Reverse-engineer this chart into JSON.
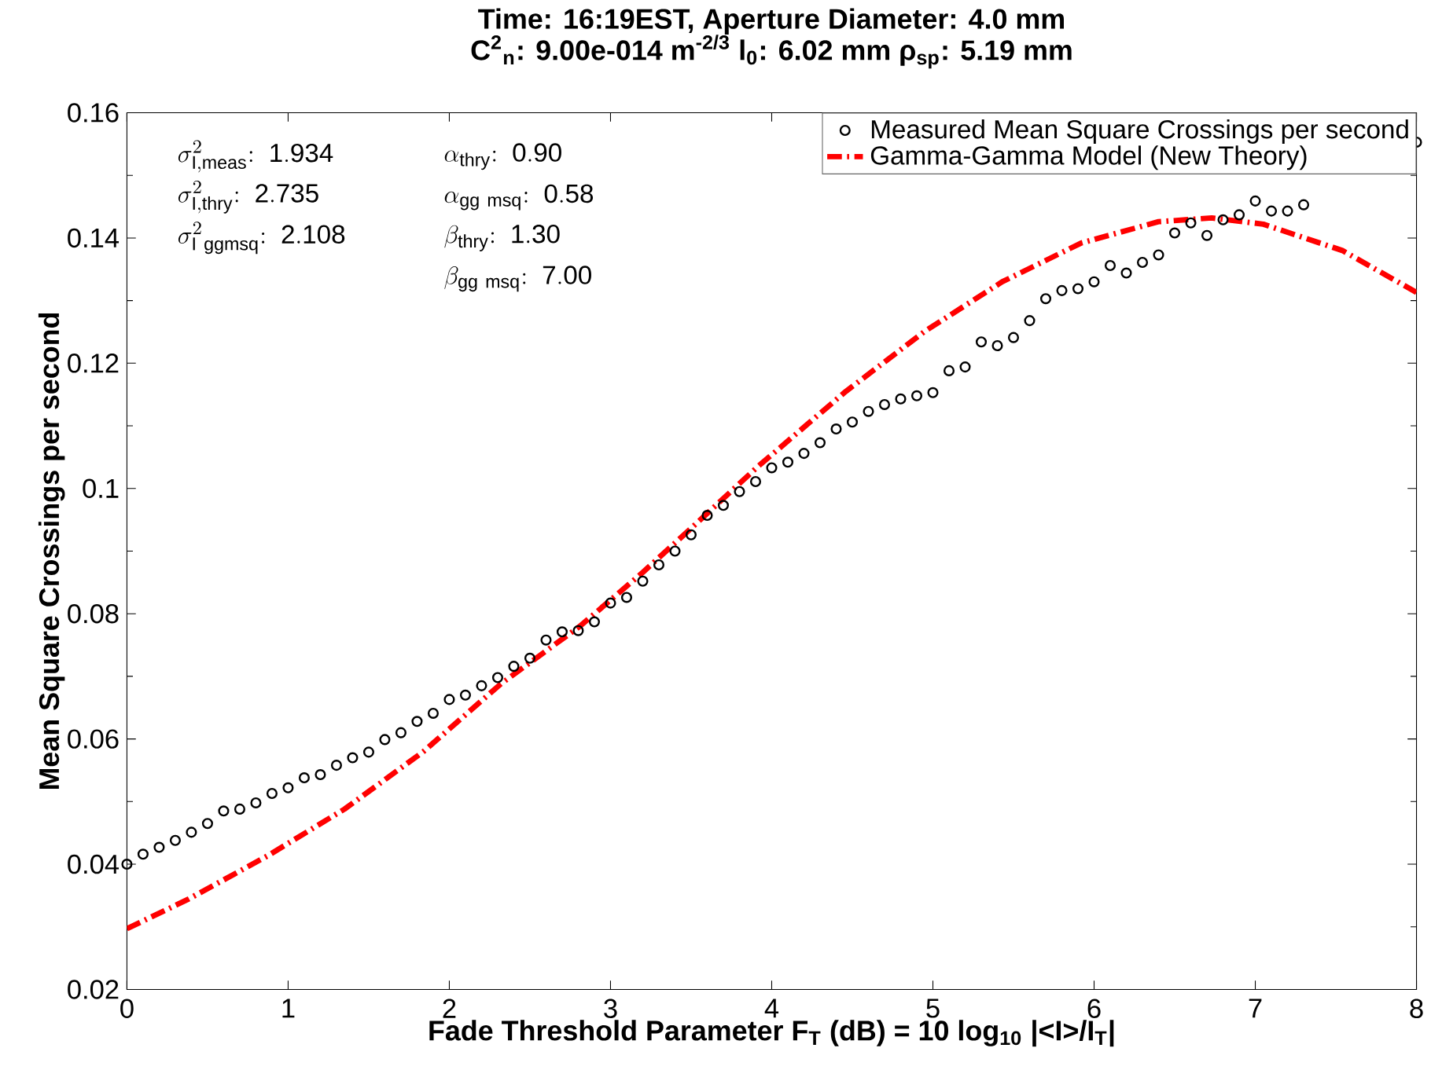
{
  "chart_data": {
    "type": "scatter",
    "title": "Time: 16:19EST, Aperture Diameter: 4.0 mm",
    "subtitle": "C$^{2}$$_{n}$: 9.00e-014 m$^{-2/3}$ l$_{0}$: 6.02 mm  ρ$_{sp}$: 5.19 mm",
    "xlabel": "Fade Threshold Parameter F$_{T}$ (dB) = 10 log$_{10}$ |<I>/I$_{T}$|",
    "ylabel": "Mean Square Crossings per second",
    "annotations": [
      "\\sigma^{2}_{\\mathrm{I,meas}}\\mathrm{:\\ 1.934}",
      "\\sigma^{2}_{\\mathrm{I,thry}}\\mathrm{:\\ 2.735}",
      "\\sigma^{2}_{\\mathrm{I\\ ggmsq}}\\mathrm{:\\ 2.108}",
      "\\alpha_{\\mathrm{thry}}\\mathrm{:\\ 0.90}",
      "\\alpha_{\\mathrm{gg\\ msq}}\\mathrm{:\\ 0.58}",
      "\\beta_{\\mathrm{thry}}\\mathrm{:\\ 1.30}",
      "\\beta_{\\mathrm{gg\\ msq}}\\mathrm{:\\ 7.00}"
    ],
    "xlim": [
      0,
      8
    ],
    "ylim": [
      0.02,
      0.16
    ],
    "xticks": [
      0,
      1,
      2,
      3,
      4,
      5,
      6,
      7,
      8
    ],
    "yticks": [
      0.02,
      0.04,
      0.06,
      0.08,
      0.1,
      0.12,
      0.14,
      0.16
    ],
    "legend": "top right",
    "grid": false,
    "series": [
      {
        "name": "Measured Mean Square Crossings per second",
        "marker": "circle",
        "color": "#000000",
        "x": [
          0,
          0.1,
          0.2,
          0.3,
          0.4,
          0.5,
          0.6,
          0.7,
          0.8,
          0.9,
          1.0,
          1.1,
          1.2,
          1.3,
          1.4,
          1.5,
          1.6,
          1.7,
          1.8,
          1.9,
          2.0,
          2.1,
          2.2,
          2.3,
          2.4,
          2.5,
          2.6,
          2.7,
          2.8,
          2.9,
          3.0,
          3.1,
          3.2,
          3.3,
          3.4,
          3.5,
          3.6,
          3.7,
          3.8,
          3.9,
          4.0,
          4.1,
          4.2,
          4.3,
          4.4,
          4.5,
          4.6,
          4.7,
          4.8,
          4.9,
          5.0,
          5.1,
          5.2,
          5.3,
          5.4,
          5.5,
          5.6,
          5.7,
          5.8,
          5.9,
          6.0,
          6.1,
          6.2,
          6.3,
          6.4,
          6.5,
          6.6,
          6.7,
          6.8,
          6.9,
          7.0,
          7.1,
          7.2,
          7.3,
          8.0
        ],
        "values": [
          0.04,
          0.0416,
          0.0427,
          0.0438,
          0.0451,
          0.0465,
          0.0485,
          0.0488,
          0.0498,
          0.0513,
          0.0522,
          0.0538,
          0.0543,
          0.0558,
          0.057,
          0.0579,
          0.0599,
          0.061,
          0.0628,
          0.0641,
          0.0663,
          0.067,
          0.0685,
          0.0698,
          0.0716,
          0.0729,
          0.0758,
          0.0771,
          0.0773,
          0.0787,
          0.0817,
          0.0826,
          0.0852,
          0.0878,
          0.09,
          0.0926,
          0.0957,
          0.0973,
          0.0995,
          0.1011,
          0.1033,
          0.1042,
          0.1056,
          0.1073,
          0.1095,
          0.1106,
          0.1123,
          0.1134,
          0.1143,
          0.1148,
          0.1153,
          0.1188,
          0.1194,
          0.1234,
          0.1228,
          0.1241,
          0.1268,
          0.1303,
          0.1316,
          0.1319,
          0.133,
          0.1356,
          0.1344,
          0.1361,
          0.1373,
          0.1408,
          0.1424,
          0.1404,
          0.1429,
          0.1437,
          0.1459,
          0.1443,
          0.1443,
          0.1453,
          0.1553
        ]
      },
      {
        "name": "Gamma-Gamma Model (New Theory)",
        "type": "line",
        "line_style": "dashdot",
        "marker": "none",
        "color": "#ff0000",
        "x": [
          0,
          0.38,
          0.87,
          1.35,
          1.84,
          2.32,
          2.81,
          3.2,
          3.49,
          3.91,
          4.46,
          4.95,
          5.43,
          5.92,
          6.4,
          6.73,
          7.05,
          7.54,
          8.0
        ],
        "values": [
          0.0297,
          0.0344,
          0.0413,
          0.0488,
          0.058,
          0.0688,
          0.078,
          0.0866,
          0.0934,
          0.1034,
          0.1155,
          0.1251,
          0.133,
          0.1392,
          0.1426,
          0.1432,
          0.1422,
          0.138,
          0.1313
        ]
      }
    ]
  }
}
